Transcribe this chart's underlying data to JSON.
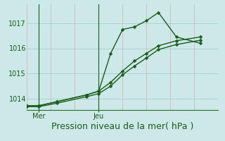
{
  "xlabel": "Pression niveau de la mer( hPa )",
  "background_color": "#cce8e8",
  "line_color": "#1a5c1a",
  "grid_color_v": "#d4b8b8",
  "grid_color_h": "#aacccc",
  "ylim": [
    1013.55,
    1017.75
  ],
  "yticks": [
    1014,
    1015,
    1016,
    1017
  ],
  "xlim": [
    0,
    16
  ],
  "x_mer": 1,
  "x_jeu": 6,
  "vgrid_x": [
    0,
    2,
    4,
    6,
    8,
    10,
    12,
    14,
    16
  ],
  "line1_x": [
    0,
    1,
    2.5,
    5,
    6,
    7,
    8,
    9,
    10,
    11,
    12.5,
    14.5
  ],
  "line1_y": [
    1013.72,
    1013.72,
    1013.88,
    1014.15,
    1014.3,
    1015.8,
    1016.75,
    1016.85,
    1017.1,
    1017.42,
    1016.45,
    1016.2
  ],
  "line2_x": [
    0,
    1,
    2.5,
    5,
    6,
    7,
    8,
    9,
    10,
    11,
    12.5,
    14.5
  ],
  "line2_y": [
    1013.72,
    1013.72,
    1013.88,
    1014.15,
    1014.3,
    1014.65,
    1015.1,
    1015.5,
    1015.8,
    1016.1,
    1016.3,
    1016.45
  ],
  "line3_x": [
    0,
    1,
    2.5,
    5,
    6,
    7,
    8,
    9,
    10,
    11,
    12.5,
    14.5
  ],
  "line3_y": [
    1013.68,
    1013.68,
    1013.82,
    1014.08,
    1014.2,
    1014.5,
    1014.95,
    1015.3,
    1015.62,
    1015.95,
    1016.15,
    1016.32
  ],
  "marker_size": 2.5,
  "line_width": 1.0,
  "xlabel_fontsize": 9,
  "tick_fontsize": 7,
  "tick_color": "#1a5c1a",
  "axis_color": "#2a6b2a",
  "label_color": "#1a5c1a"
}
